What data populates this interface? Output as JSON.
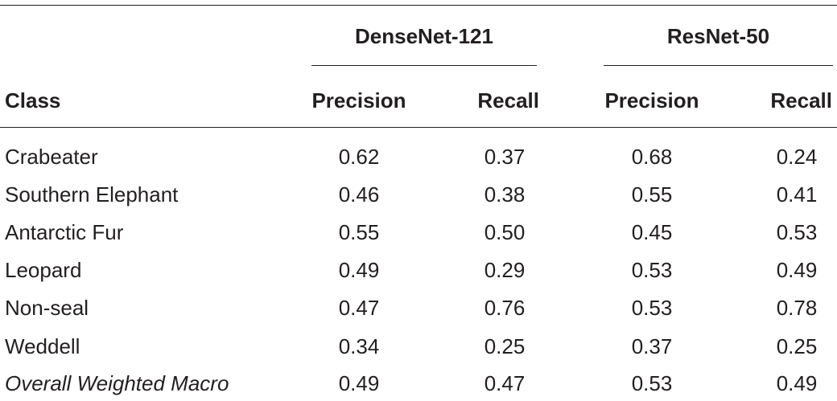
{
  "table": {
    "group_headers": [
      "DenseNet-121",
      "ResNet-50"
    ],
    "column_headers": [
      "Class",
      "Precision",
      "Recall",
      "Precision",
      "Recall"
    ],
    "rows": [
      {
        "class": "Crabeater",
        "values": [
          "0.62",
          "0.37",
          "0.68",
          "0.24"
        ]
      },
      {
        "class": "Southern Elephant",
        "values": [
          "0.46",
          "0.38",
          "0.55",
          "0.41"
        ]
      },
      {
        "class": "Antarctic Fur",
        "values": [
          "0.55",
          "0.50",
          "0.45",
          "0.53"
        ]
      },
      {
        "class": "Leopard",
        "values": [
          "0.49",
          "0.29",
          "0.53",
          "0.49"
        ]
      },
      {
        "class": "Non-seal",
        "values": [
          "0.47",
          "0.76",
          "0.53",
          "0.78"
        ]
      },
      {
        "class": "Weddell",
        "values": [
          "0.34",
          "0.25",
          "0.37",
          "0.25"
        ]
      },
      {
        "class": "Overall Weighted Macro",
        "values": [
          "0.49",
          "0.47",
          "0.53",
          "0.49"
        ],
        "italic": true
      }
    ]
  }
}
